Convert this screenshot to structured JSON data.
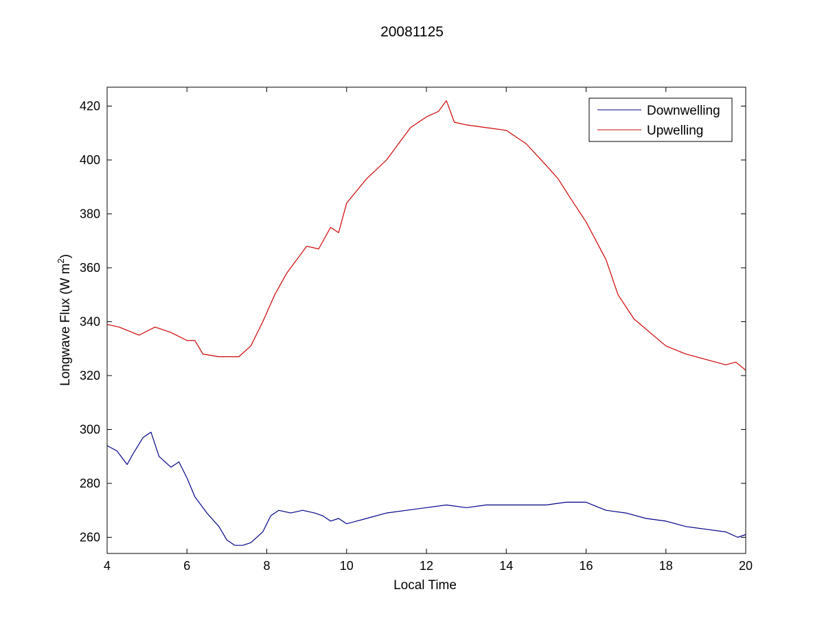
{
  "chart_data": {
    "type": "line",
    "title": "20081125",
    "xlabel": "Local Time",
    "ylabel": "Longwave Flux (W m",
    "ylabel_sup": "2",
    "ylabel_close": ")",
    "xlim": [
      4,
      20
    ],
    "ylim": [
      254,
      427
    ],
    "xticks": [
      4,
      6,
      8,
      10,
      12,
      14,
      16,
      18,
      20
    ],
    "yticks": [
      260,
      280,
      300,
      320,
      340,
      360,
      380,
      400,
      420
    ],
    "grid": false,
    "legend_position": "top-right",
    "colors": {
      "Downwelling": "#00008b",
      "Upwelling": "#cc0000"
    },
    "series": [
      {
        "name": "Downwelling",
        "x": [
          4.0,
          4.25,
          4.5,
          4.65,
          4.9,
          5.1,
          5.3,
          5.6,
          5.8,
          6.0,
          6.2,
          6.5,
          6.8,
          7.0,
          7.2,
          7.4,
          7.6,
          7.9,
          8.1,
          8.3,
          8.6,
          8.9,
          9.2,
          9.4,
          9.6,
          9.8,
          10.0,
          10.5,
          11.0,
          11.5,
          12.0,
          12.5,
          13.0,
          13.5,
          14.0,
          14.5,
          15.0,
          15.5,
          16.0,
          16.5,
          17.0,
          17.5,
          18.0,
          18.5,
          19.0,
          19.5,
          19.8,
          20.0
        ],
        "y": [
          294,
          292,
          287,
          291,
          297,
          299,
          290,
          286,
          288,
          282,
          275,
          269,
          264,
          259,
          257,
          257,
          258,
          262,
          268,
          270,
          269,
          270,
          269,
          268,
          266,
          267,
          265,
          267,
          269,
          270,
          271,
          272,
          271,
          272,
          272,
          272,
          272,
          273,
          273,
          270,
          269,
          267,
          266,
          264,
          263,
          262,
          260,
          261
        ]
      },
      {
        "name": "Upwelling",
        "x": [
          4.0,
          4.3,
          4.8,
          5.2,
          5.6,
          6.0,
          6.2,
          6.4,
          6.8,
          7.0,
          7.3,
          7.6,
          7.9,
          8.2,
          8.5,
          8.8,
          9.0,
          9.3,
          9.6,
          9.8,
          10.0,
          10.5,
          11.0,
          11.3,
          11.6,
          12.0,
          12.3,
          12.5,
          12.7,
          13.0,
          13.5,
          14.0,
          14.5,
          15.0,
          15.3,
          15.6,
          16.0,
          16.5,
          16.8,
          17.2,
          17.6,
          18.0,
          18.5,
          19.0,
          19.5,
          19.75,
          20.0
        ],
        "y": [
          339,
          338,
          335,
          338,
          336,
          333,
          333,
          328,
          327,
          327,
          327,
          331,
          340,
          350,
          358,
          364,
          368,
          367,
          375,
          373,
          384,
          393,
          400,
          406,
          412,
          416,
          418,
          422,
          414,
          413,
          412,
          411,
          406,
          398,
          393,
          386,
          377,
          363,
          350,
          341,
          336,
          331,
          328,
          326,
          324,
          325,
          322
        ]
      }
    ]
  }
}
